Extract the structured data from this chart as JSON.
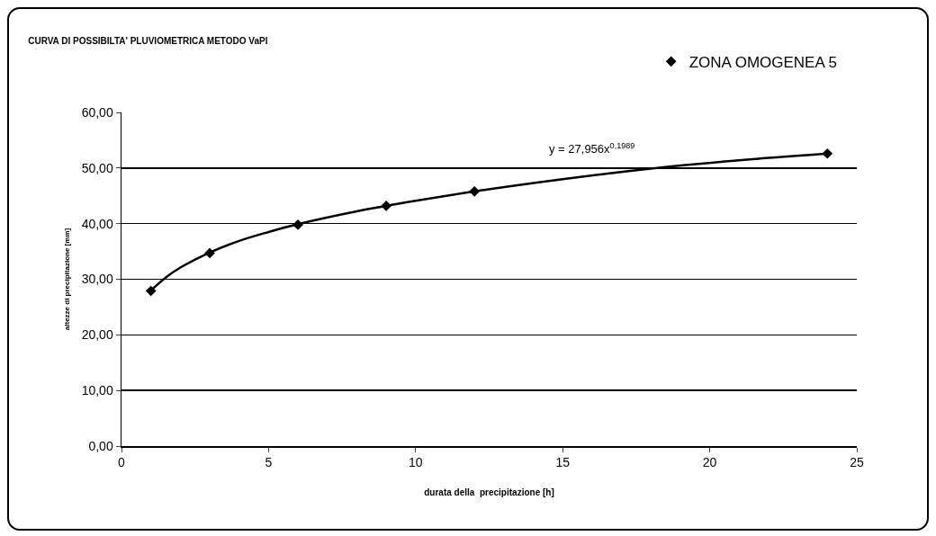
{
  "chart_data": {
    "type": "scatter",
    "title": "CURVA DI POSSIBILTA' PLUVIOMETRICA METODO VaPI",
    "xlabel": "durata della  precipitazione [h]",
    "ylabel": "altezze di precipitazione [mm]",
    "x": [
      1,
      3,
      6,
      9,
      12,
      24
    ],
    "series": [
      {
        "name": "ZONA OMOGENEA 5",
        "color": "#000000",
        "values": [
          27.9,
          34.7,
          39.8,
          43.2,
          45.8,
          52.6
        ],
        "marker": "diamond"
      },
      {
        "type": "line",
        "color": "#000000",
        "x": [
          1,
          1.5,
          2,
          3,
          4,
          5,
          6,
          8,
          10,
          12,
          15,
          18,
          21,
          24
        ],
        "values": [
          28.0,
          30.3,
          32.1,
          34.8,
          36.9,
          38.5,
          39.9,
          42.2,
          44.1,
          45.8,
          48,
          49.9,
          51.4,
          52.6
        ],
        "marker": "none",
        "line_style": "solid"
      }
    ],
    "annotations": [
      "y = 27,956x$^{0,1989}$"
    ],
    "xlim": [
      0,
      25
    ],
    "xticks": [
      0,
      5,
      10,
      15,
      20,
      25
    ],
    "ylim": [
      0,
      60
    ],
    "yticks": [
      {
        "value": 0,
        "label": "0,00"
      },
      {
        "value": 10,
        "label": "10,00"
      },
      {
        "value": 20,
        "label": "20,00"
      },
      {
        "value": 30,
        "label": "30,00"
      },
      {
        "value": 40,
        "label": "40,00"
      },
      {
        "value": 50,
        "label": "50,00"
      },
      {
        "value": 60,
        "label": "60,00"
      }
    ],
    "grid": "y",
    "legend": "top right"
  }
}
